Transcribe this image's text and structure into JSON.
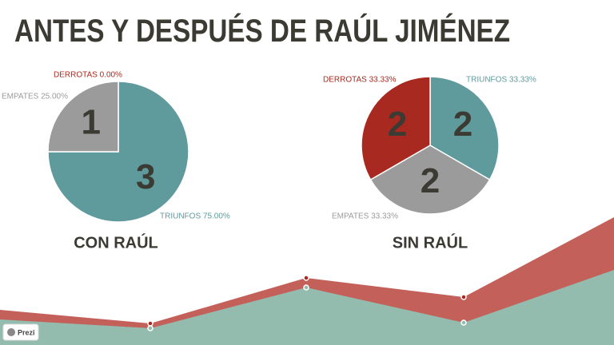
{
  "title": "ANTES Y DESPUÉS DE RAÚL JIMÉNEZ",
  "badge": "Prezi",
  "chart_data": [
    {
      "type": "pie",
      "title": "CON RAÚL",
      "categories": [
        "TRIUNFOS",
        "EMPATES",
        "DERROTAS"
      ],
      "values": [
        3,
        1,
        0
      ],
      "labels": [
        "TRIUNFOS 75.00%",
        "EMPATES 25.00%",
        "DERROTAS 0.00%"
      ],
      "colors": [
        "#5f9a9c",
        "#9b9b9b",
        "#a8291f"
      ]
    },
    {
      "type": "pie",
      "title": "SIN RAÚL",
      "categories": [
        "TRIUNFOS",
        "EMPATES",
        "DERROTAS"
      ],
      "values": [
        2,
        2,
        2
      ],
      "labels": [
        "TRIUNFOS 33.33%",
        "EMPATES 33.33%",
        "DERROTAS 33.33%"
      ],
      "colors": [
        "#5f9a9c",
        "#9b9b9b",
        "#a8291f"
      ]
    }
  ]
}
